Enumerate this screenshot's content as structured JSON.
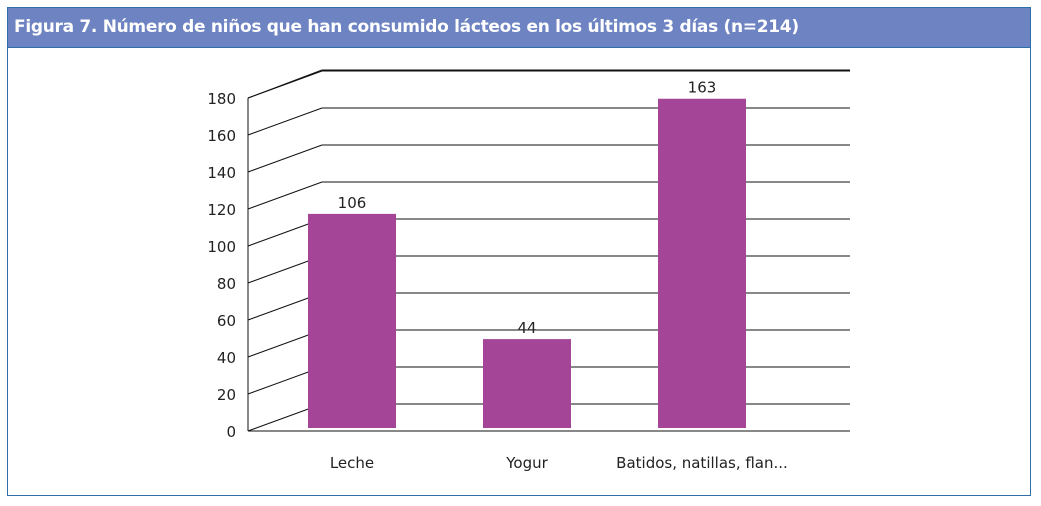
{
  "title": "Figura 7.  Número de niños que han consumido lácteos en los últimos 3 días (n=214)",
  "colors": {
    "header": "#6d83c2",
    "border": "#2f6fa8",
    "bar": "#a44597"
  },
  "chart_data": {
    "type": "bar",
    "title": "Figura 7.  Número de niños que han consumido lácteos en los últimos 3 días (n=214)",
    "categories": [
      "Leche",
      "Yogur",
      "Batidos, natillas, flan..."
    ],
    "values": [
      106,
      44,
      163
    ],
    "data_labels": [
      "106",
      "44",
      "163"
    ],
    "yticks": [
      "0",
      "20",
      "40",
      "60",
      "80",
      "100",
      "120",
      "140",
      "160",
      "180"
    ],
    "ylim": [
      0,
      180
    ],
    "grid": true,
    "style": "3d-perspective gridlines"
  }
}
